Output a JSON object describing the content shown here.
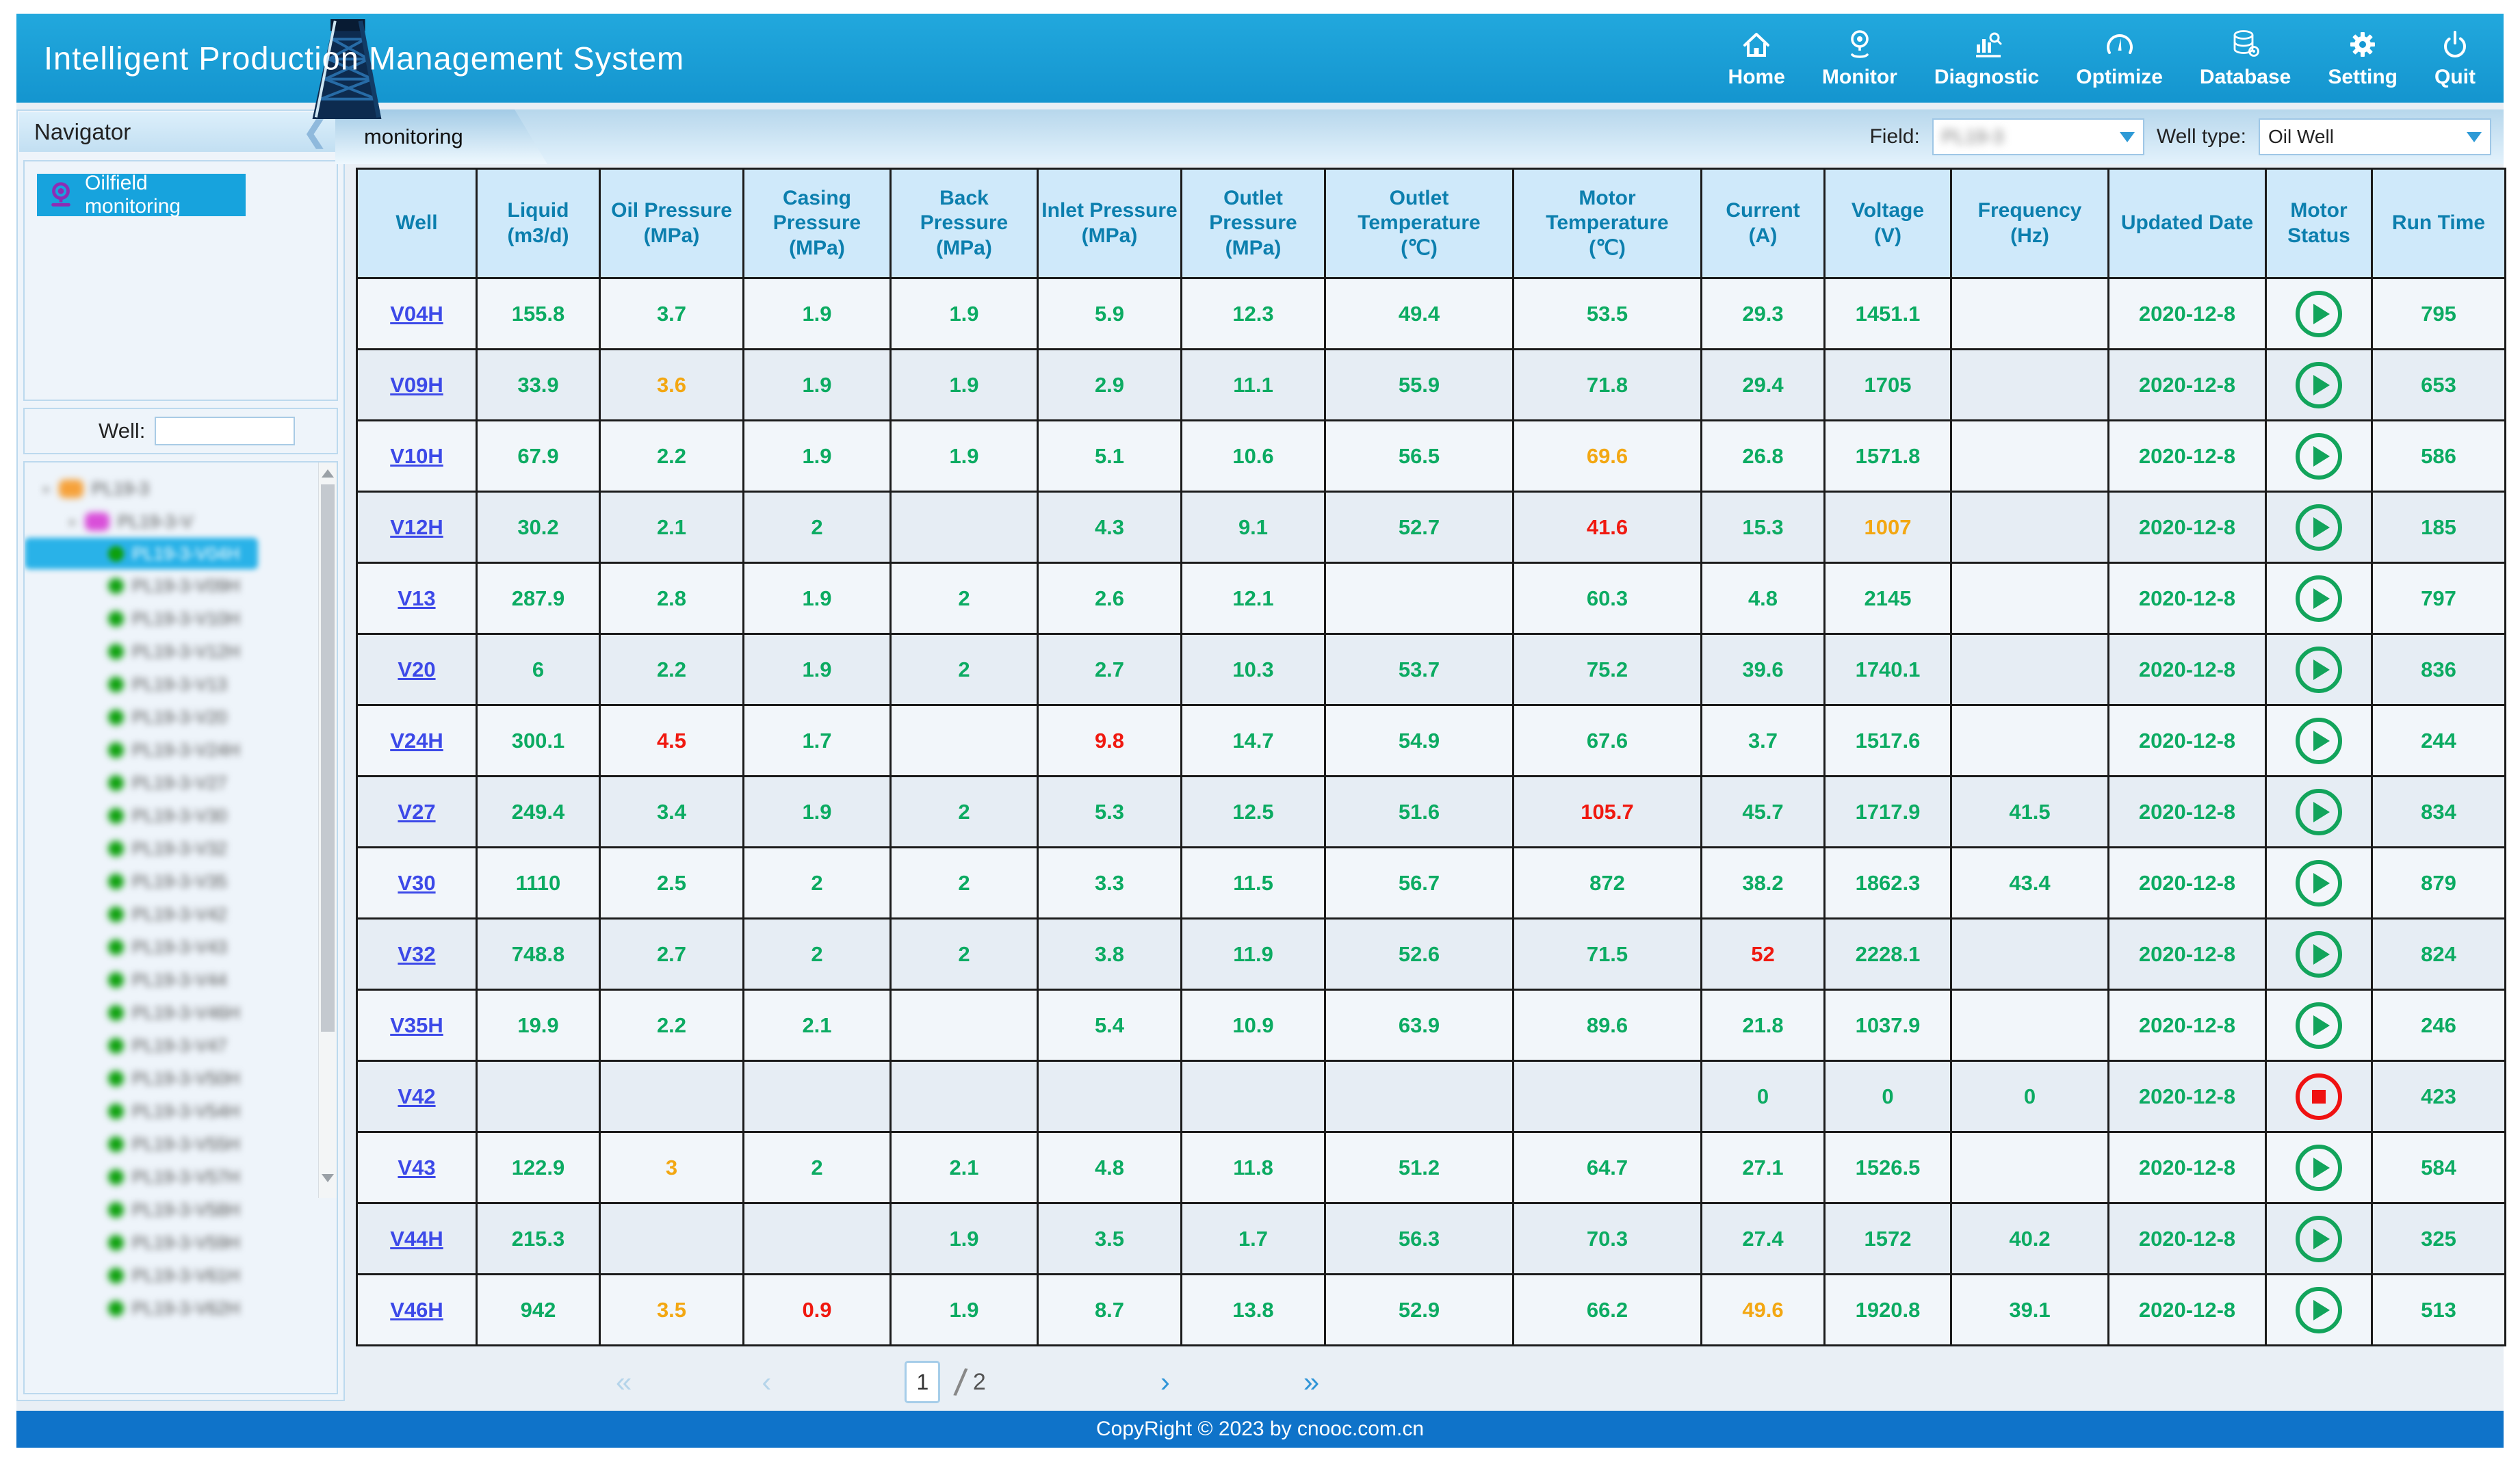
{
  "colors": {
    "header_blue": "#1a9fd8",
    "footer_blue": "#0f73c9",
    "ok_green": "#0cab62",
    "warn_orange": "#f3a712",
    "alarm_red": "#f01910",
    "link_blue": "#3c49e8",
    "selected_blue": "#29b2e8",
    "header_text": "#0c7fae"
  },
  "header": {
    "title": "Intelligent Production Management System",
    "nav": [
      {
        "id": "home",
        "icon": "home",
        "label": "Home"
      },
      {
        "id": "monitor",
        "icon": "monitor",
        "label": "Monitor"
      },
      {
        "id": "diagnostic",
        "icon": "diagnostic",
        "label": "Diagnostic"
      },
      {
        "id": "optimize",
        "icon": "optimize",
        "label": "Optimize"
      },
      {
        "id": "database",
        "icon": "database",
        "label": "Database"
      },
      {
        "id": "setting",
        "icon": "setting",
        "label": "Setting"
      },
      {
        "id": "quit",
        "icon": "quit",
        "label": "Quit"
      }
    ]
  },
  "sidebar": {
    "navigator_title": "Navigator",
    "oilfield_label": "Oilfield monitoring",
    "well_label": "Well:",
    "well_input_value": "",
    "tree": {
      "root": {
        "label": "PL19-3"
      },
      "group": {
        "label": "PL19-3-V"
      },
      "selected_index": 0,
      "wells": [
        "PL19-3-V04H",
        "PL19-3-V09H",
        "PL19-3-V10H",
        "PL19-3-V12H",
        "PL19-3-V13",
        "PL19-3-V20",
        "PL19-3-V24H",
        "PL19-3-V27",
        "PL19-3-V30",
        "PL19-3-V32",
        "PL19-3-V35",
        "PL19-3-V42",
        "PL19-3-V43",
        "PL19-3-V44",
        "PL19-3-V46H",
        "PL19-3-V47",
        "PL19-3-V50H",
        "PL19-3-V54H",
        "PL19-3-V55H",
        "PL19-3-V57H",
        "PL19-3-V58H",
        "PL19-3-V59H",
        "PL19-3-V61H",
        "PL19-3-V62H"
      ]
    }
  },
  "tabs": {
    "monitoring": "monitoring"
  },
  "filters": {
    "field_label": "Field:",
    "field_value": "PL19-3",
    "well_type_label": "Well type:",
    "well_type_value": "Oil Well"
  },
  "table": {
    "columns": [
      {
        "title": "Well",
        "unit": ""
      },
      {
        "title": "Liquid",
        "unit": "(m3/d)"
      },
      {
        "title": "Oil Pressure",
        "unit": "(MPa)"
      },
      {
        "title": "Casing Pressure",
        "unit": "(MPa)"
      },
      {
        "title": "Back Pressure",
        "unit": "(MPa)"
      },
      {
        "title": "Inlet Pressure",
        "unit": "(MPa)"
      },
      {
        "title": "Outlet Pressure",
        "unit": "(MPa)"
      },
      {
        "title": "Outlet Temperature",
        "unit": "(℃)"
      },
      {
        "title": "Motor Temperature",
        "unit": "(℃)"
      },
      {
        "title": "Current",
        "unit": "(A)"
      },
      {
        "title": "Voltage",
        "unit": "(V)"
      },
      {
        "title": "Frequency",
        "unit": "(Hz)"
      },
      {
        "title": "Updated Date",
        "unit": ""
      },
      {
        "title": "Motor Status",
        "unit": ""
      },
      {
        "title": "Run Time",
        "unit": ""
      }
    ],
    "rows": [
      {
        "well": "V04H",
        "values": [
          {
            "v": "155.8"
          },
          {
            "v": "3.7"
          },
          {
            "v": "1.9"
          },
          {
            "v": "1.9"
          },
          {
            "v": "5.9"
          },
          {
            "v": "12.3"
          },
          {
            "v": "49.4"
          },
          {
            "v": "53.5"
          },
          {
            "v": "29.3"
          },
          {
            "v": "1451.1"
          },
          {
            "v": ""
          }
        ],
        "date": "2020-12-8",
        "motor": "run",
        "runtime": "795"
      },
      {
        "well": "V09H",
        "values": [
          {
            "v": "33.9"
          },
          {
            "v": "3.6",
            "c": "warn"
          },
          {
            "v": "1.9"
          },
          {
            "v": "1.9"
          },
          {
            "v": "2.9"
          },
          {
            "v": "11.1"
          },
          {
            "v": "55.9"
          },
          {
            "v": "71.8"
          },
          {
            "v": "29.4"
          },
          {
            "v": "1705"
          },
          {
            "v": ""
          }
        ],
        "date": "2020-12-8",
        "motor": "run",
        "runtime": "653"
      },
      {
        "well": "V10H",
        "values": [
          {
            "v": "67.9"
          },
          {
            "v": "2.2"
          },
          {
            "v": "1.9"
          },
          {
            "v": "1.9"
          },
          {
            "v": "5.1"
          },
          {
            "v": "10.6"
          },
          {
            "v": "56.5"
          },
          {
            "v": "69.6",
            "c": "warn"
          },
          {
            "v": "26.8"
          },
          {
            "v": "1571.8"
          },
          {
            "v": ""
          }
        ],
        "date": "2020-12-8",
        "motor": "run",
        "runtime": "586"
      },
      {
        "well": "V12H",
        "values": [
          {
            "v": "30.2"
          },
          {
            "v": "2.1"
          },
          {
            "v": "2"
          },
          {
            "v": ""
          },
          {
            "v": "4.3"
          },
          {
            "v": "9.1"
          },
          {
            "v": "52.7"
          },
          {
            "v": "41.6",
            "c": "alarm"
          },
          {
            "v": "15.3"
          },
          {
            "v": "1007",
            "c": "warn"
          },
          {
            "v": ""
          }
        ],
        "date": "2020-12-8",
        "motor": "run",
        "runtime": "185"
      },
      {
        "well": "V13",
        "values": [
          {
            "v": "287.9"
          },
          {
            "v": "2.8"
          },
          {
            "v": "1.9"
          },
          {
            "v": "2"
          },
          {
            "v": "2.6"
          },
          {
            "v": "12.1"
          },
          {
            "v": ""
          },
          {
            "v": "60.3"
          },
          {
            "v": "4.8"
          },
          {
            "v": "2145"
          },
          {
            "v": ""
          }
        ],
        "date": "2020-12-8",
        "motor": "run",
        "runtime": "797"
      },
      {
        "well": "V20",
        "values": [
          {
            "v": "6"
          },
          {
            "v": "2.2"
          },
          {
            "v": "1.9"
          },
          {
            "v": "2"
          },
          {
            "v": "2.7"
          },
          {
            "v": "10.3"
          },
          {
            "v": "53.7"
          },
          {
            "v": "75.2"
          },
          {
            "v": "39.6"
          },
          {
            "v": "1740.1"
          },
          {
            "v": ""
          }
        ],
        "date": "2020-12-8",
        "motor": "run",
        "runtime": "836"
      },
      {
        "well": "V24H",
        "values": [
          {
            "v": "300.1"
          },
          {
            "v": "4.5",
            "c": "alarm"
          },
          {
            "v": "1.7"
          },
          {
            "v": ""
          },
          {
            "v": "9.8",
            "c": "alarm"
          },
          {
            "v": "14.7"
          },
          {
            "v": "54.9"
          },
          {
            "v": "67.6"
          },
          {
            "v": "3.7"
          },
          {
            "v": "1517.6"
          },
          {
            "v": ""
          }
        ],
        "date": "2020-12-8",
        "motor": "run",
        "runtime": "244"
      },
      {
        "well": "V27",
        "values": [
          {
            "v": "249.4"
          },
          {
            "v": "3.4"
          },
          {
            "v": "1.9"
          },
          {
            "v": "2"
          },
          {
            "v": "5.3"
          },
          {
            "v": "12.5"
          },
          {
            "v": "51.6"
          },
          {
            "v": "105.7",
            "c": "alarm"
          },
          {
            "v": "45.7"
          },
          {
            "v": "1717.9"
          },
          {
            "v": "41.5"
          }
        ],
        "date": "2020-12-8",
        "motor": "run",
        "runtime": "834"
      },
      {
        "well": "V30",
        "values": [
          {
            "v": "1110"
          },
          {
            "v": "2.5"
          },
          {
            "v": "2"
          },
          {
            "v": "2"
          },
          {
            "v": "3.3"
          },
          {
            "v": "11.5"
          },
          {
            "v": "56.7"
          },
          {
            "v": "872"
          },
          {
            "v": "38.2"
          },
          {
            "v": "1862.3"
          },
          {
            "v": "43.4"
          }
        ],
        "date": "2020-12-8",
        "motor": "run",
        "runtime": "879"
      },
      {
        "well": "V32",
        "values": [
          {
            "v": "748.8"
          },
          {
            "v": "2.7"
          },
          {
            "v": "2"
          },
          {
            "v": "2"
          },
          {
            "v": "3.8"
          },
          {
            "v": "11.9"
          },
          {
            "v": "52.6"
          },
          {
            "v": "71.5"
          },
          {
            "v": "52",
            "c": "alarm"
          },
          {
            "v": "2228.1"
          },
          {
            "v": ""
          }
        ],
        "date": "2020-12-8",
        "motor": "run",
        "runtime": "824"
      },
      {
        "well": "V35H",
        "values": [
          {
            "v": "19.9"
          },
          {
            "v": "2.2"
          },
          {
            "v": "2.1"
          },
          {
            "v": ""
          },
          {
            "v": "5.4"
          },
          {
            "v": "10.9"
          },
          {
            "v": "63.9"
          },
          {
            "v": "89.6"
          },
          {
            "v": "21.8"
          },
          {
            "v": "1037.9"
          },
          {
            "v": ""
          }
        ],
        "date": "2020-12-8",
        "motor": "run",
        "runtime": "246"
      },
      {
        "well": "V42",
        "values": [
          {
            "v": ""
          },
          {
            "v": ""
          },
          {
            "v": ""
          },
          {
            "v": ""
          },
          {
            "v": ""
          },
          {
            "v": ""
          },
          {
            "v": ""
          },
          {
            "v": ""
          },
          {
            "v": "0"
          },
          {
            "v": "0"
          },
          {
            "v": "0"
          }
        ],
        "date": "2020-12-8",
        "motor": "stop",
        "runtime": "423"
      },
      {
        "well": "V43",
        "values": [
          {
            "v": "122.9"
          },
          {
            "v": "3",
            "c": "warn"
          },
          {
            "v": "2"
          },
          {
            "v": "2.1"
          },
          {
            "v": "4.8"
          },
          {
            "v": "11.8"
          },
          {
            "v": "51.2"
          },
          {
            "v": "64.7"
          },
          {
            "v": "27.1"
          },
          {
            "v": "1526.5"
          },
          {
            "v": ""
          }
        ],
        "date": "2020-12-8",
        "motor": "run",
        "runtime": "584"
      },
      {
        "well": "V44H",
        "values": [
          {
            "v": "215.3"
          },
          {
            "v": ""
          },
          {
            "v": ""
          },
          {
            "v": "1.9"
          },
          {
            "v": "3.5"
          },
          {
            "v": "1.7"
          },
          {
            "v": "56.3"
          },
          {
            "v": "70.3"
          },
          {
            "v": "27.4"
          },
          {
            "v": "1572"
          },
          {
            "v": "40.2"
          }
        ],
        "date": "2020-12-8",
        "motor": "run",
        "runtime": "325"
      },
      {
        "well": "V46H",
        "values": [
          {
            "v": "942"
          },
          {
            "v": "3.5",
            "c": "warn"
          },
          {
            "v": "0.9",
            "c": "alarm"
          },
          {
            "v": "1.9"
          },
          {
            "v": "8.7"
          },
          {
            "v": "13.8"
          },
          {
            "v": "52.9"
          },
          {
            "v": "66.2"
          },
          {
            "v": "49.6",
            "c": "warn"
          },
          {
            "v": "1920.8"
          },
          {
            "v": "39.1"
          }
        ],
        "date": "2020-12-8",
        "motor": "run",
        "runtime": "513"
      }
    ]
  },
  "pagination": {
    "first": "«",
    "prev": "‹",
    "current": "1",
    "slash": "/",
    "total": "2",
    "next": "›",
    "last": "»"
  },
  "footer": {
    "copyright": "CopyRight © 2023 by cnooc.com.cn"
  }
}
